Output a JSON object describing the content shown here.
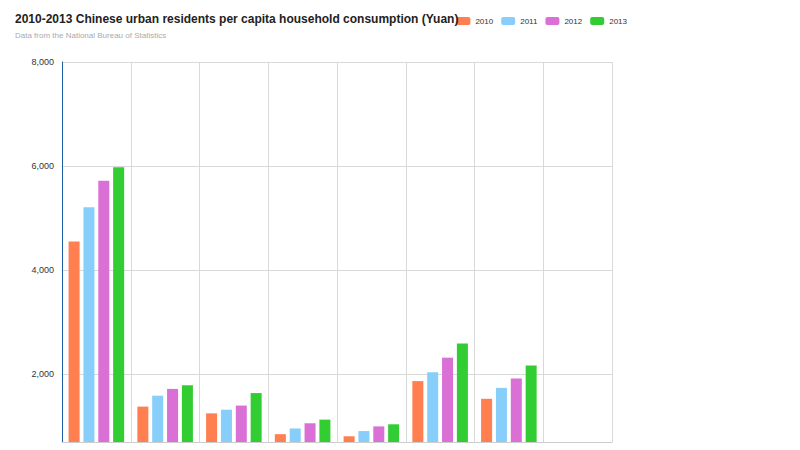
{
  "chart_data": {
    "type": "bar",
    "title": "2010-2013 Chinese urban residents per capita household consumption (Yuan)",
    "subtitle": "Data from the National Bureau of Statistics",
    "categories": [
      null,
      null,
      null,
      null,
      null,
      null,
      null,
      null
    ],
    "series": [
      {
        "name": "2010",
        "color": "#ff7f50",
        "values": [
          4550,
          1380,
          1250,
          850,
          810,
          1870,
          1530,
          null
        ]
      },
      {
        "name": "2011",
        "color": "#87cefa",
        "values": [
          5210,
          1590,
          1320,
          960,
          910,
          2040,
          1740,
          null
        ]
      },
      {
        "name": "2012",
        "color": "#da70d6",
        "values": [
          5720,
          1720,
          1400,
          1060,
          1000,
          2320,
          1920,
          null
        ]
      },
      {
        "name": "2013",
        "color": "#32cd32",
        "values": [
          5980,
          1790,
          1640,
          1130,
          1040,
          2590,
          2170,
          null
        ]
      }
    ],
    "ylim": [
      700,
      8000
    ],
    "yticks": [
      {
        "value": 2000,
        "label": "2,000"
      },
      {
        "value": 4000,
        "label": "4,000"
      },
      {
        "value": 6000,
        "label": "6,000"
      },
      {
        "value": 8000,
        "label": "8,000"
      }
    ],
    "grid": true,
    "legend": "top-right"
  }
}
